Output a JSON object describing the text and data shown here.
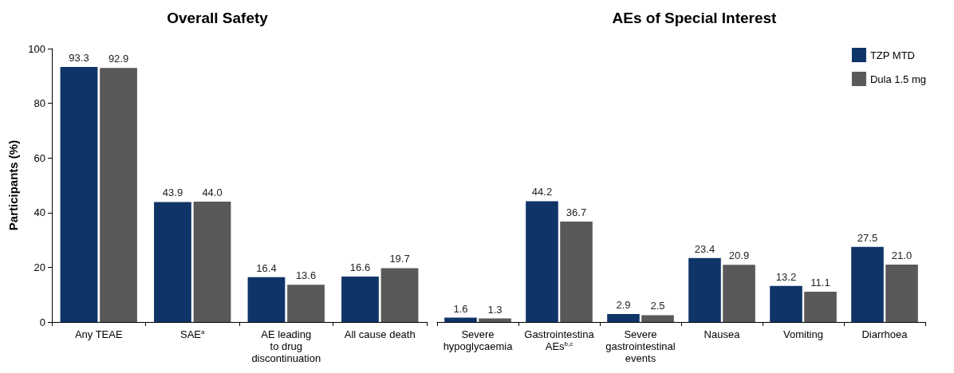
{
  "chart_data": [
    {
      "type": "bar",
      "title": "Overall Safety",
      "ylabel": "Participants (%)",
      "categories": [
        "Any TEAE",
        "SAE$^{a}$",
        "AE leading\nto drug\ndiscontinuation",
        "All cause death"
      ],
      "ylim": [
        0,
        100
      ],
      "yticks": [
        0,
        20,
        40,
        60,
        80,
        100
      ],
      "grid": false,
      "legend": false,
      "series": [
        {
          "color": "#0f3468",
          "values": [
            93.3,
            43.9,
            16.4,
            16.6
          ],
          "value_labels": [
            "93.3",
            "43.9",
            "16.4",
            "16.6"
          ]
        },
        {
          "color": "#595959",
          "values": [
            92.9,
            44.0,
            13.6,
            19.7
          ],
          "value_labels": [
            "92.9",
            "44.0",
            "13.6",
            "19.7"
          ]
        }
      ]
    },
    {
      "type": "bar",
      "title": "AEs of Special Interest",
      "categories": [
        "Severe\nhypoglycaemia",
        "Gastrointestina\nAEs$^{b,c}$",
        "Severe\ngastrointestinal\nevents",
        "Nausea",
        "Vomiting",
        "Diarrhoea"
      ],
      "ylim": [
        0,
        100
      ],
      "tick_labels": "x",
      "grid": false,
      "legend": "top right",
      "series": [
        {
          "name": "TZP MTD",
          "color": "#0f3468",
          "values": [
            1.6,
            44.2,
            2.9,
            23.4,
            13.2,
            27.5
          ],
          "value_labels": [
            "1.6",
            "44.2",
            "2.9",
            "23.4",
            "13.2",
            "27.5"
          ]
        },
        {
          "name": "Dula 1.5 mg",
          "color": "#595959",
          "values": [
            1.3,
            36.7,
            2.5,
            20.9,
            11.1,
            21.0
          ],
          "value_labels": [
            "1.3",
            "36.7",
            "2.5",
            "20.9",
            "11.1",
            "21.0"
          ]
        }
      ]
    }
  ]
}
